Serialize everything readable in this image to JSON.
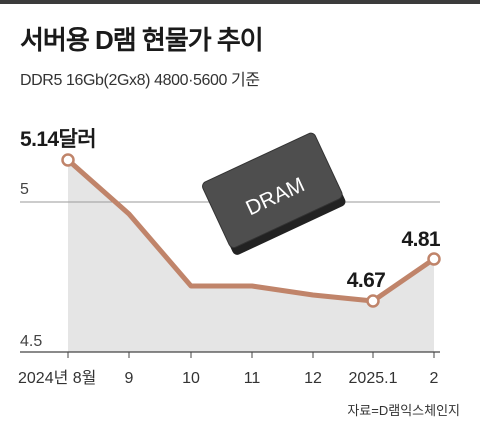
{
  "title": "서버용 D램 현물가 추이",
  "subtitle": "DDR5 16Gb(2Gx8) 4800·5600 기준",
  "source": "자료=D램익스체인지",
  "chip_label": "DRAM",
  "colors": {
    "line": "#c0846a",
    "area": "#e5e5e5",
    "grid": "#9a9a9a",
    "axis": "#444444"
  },
  "chart_data": {
    "type": "area",
    "categories": [
      "2024년 8월",
      "9",
      "10",
      "11",
      "12",
      "2025.1",
      "2"
    ],
    "values": [
      5.14,
      4.96,
      4.72,
      4.72,
      4.69,
      4.67,
      4.81
    ],
    "ylim": [
      4.5,
      5.2
    ],
    "yticks": [
      {
        "value": 5,
        "label": "5"
      },
      {
        "value": 4.5,
        "label": "4.5"
      }
    ],
    "data_labels": [
      {
        "index": 0,
        "text": "5.14달러"
      },
      {
        "index": 5,
        "text": "4.67"
      },
      {
        "index": 6,
        "text": "4.81"
      }
    ]
  }
}
